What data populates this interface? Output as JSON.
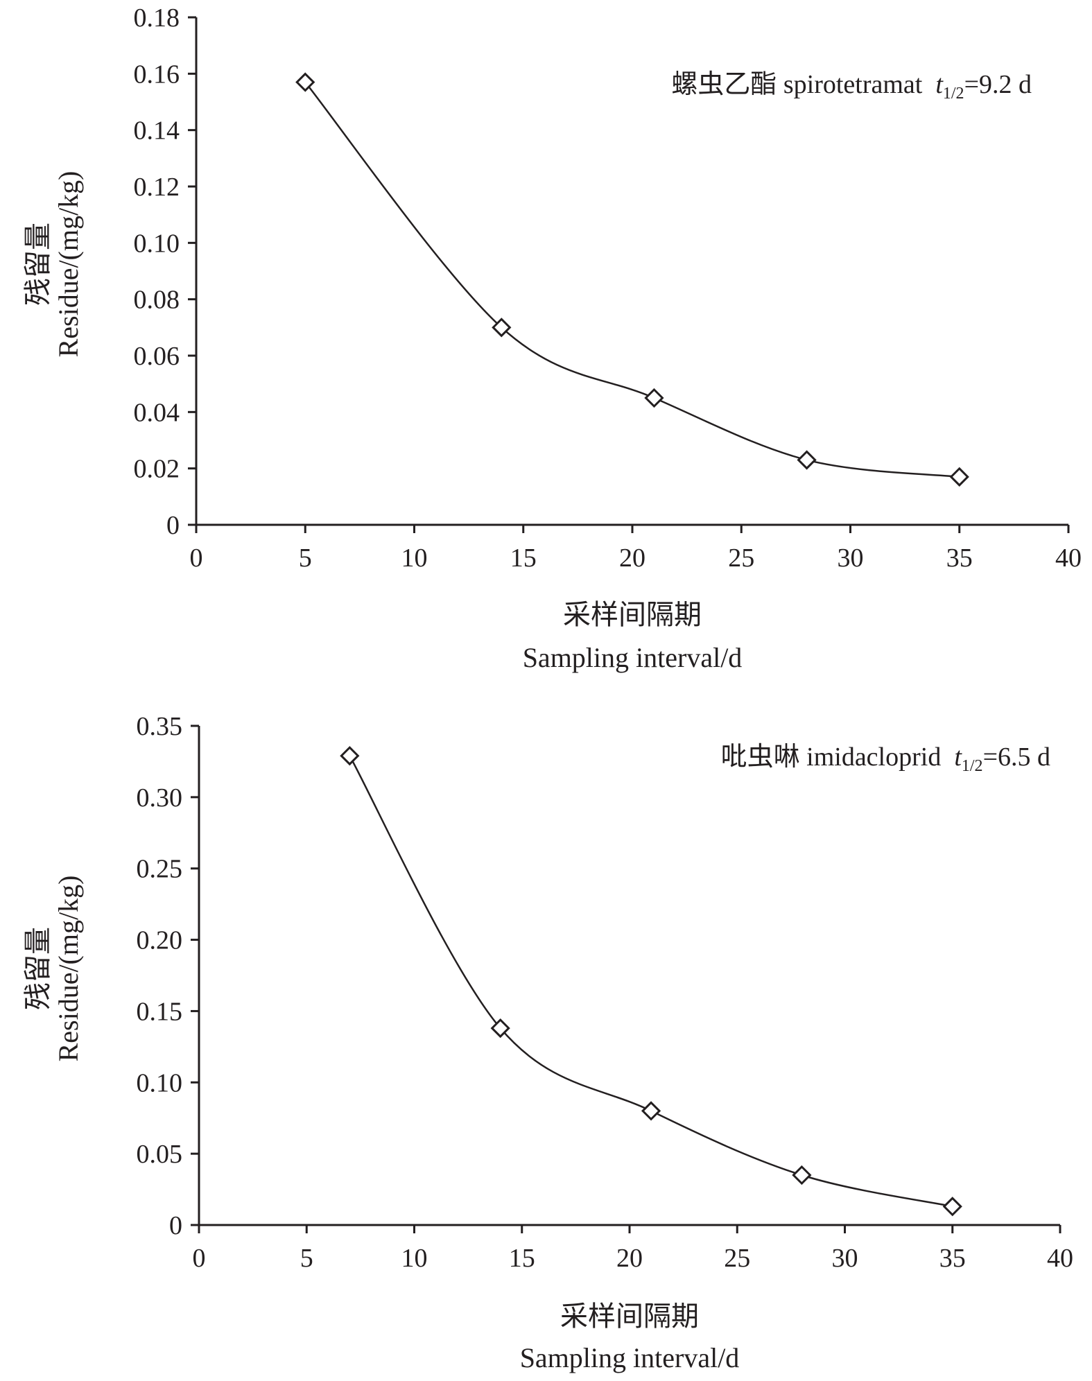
{
  "chart_data": [
    {
      "type": "line",
      "title": "",
      "annotation": {
        "name": "螺虫乙酯 spirotetramat",
        "half_life_symbol": "t",
        "half_life_subscript": "1/2",
        "half_life_value": "=9.2 d"
      },
      "xlabel_cn": "采样间隔期",
      "xlabel": "Sampling interval/d",
      "ylabel_cn": "残留量",
      "ylabel": "Residue/(mg/kg)",
      "xlim": [
        0,
        40
      ],
      "ylim": [
        0,
        0.18
      ],
      "x_ticks": [
        0,
        5,
        10,
        15,
        20,
        25,
        30,
        35,
        40
      ],
      "x_tick_labels": [
        "0",
        "5",
        "10",
        "15",
        "20",
        "25",
        "30",
        "35",
        "40"
      ],
      "y_ticks": [
        0,
        0.02,
        0.04,
        0.06,
        0.08,
        0.1,
        0.12,
        0.14,
        0.16,
        0.18
      ],
      "y_tick_labels": [
        "0",
        "0.02",
        "0.04",
        "0.06",
        "0.08",
        "0.10",
        "0.12",
        "0.14",
        "0.16",
        "0.18"
      ],
      "grid": false,
      "marker": "diamond",
      "series": [
        {
          "name": "spirotetramat",
          "x": [
            5,
            14,
            21,
            28,
            35
          ],
          "y": [
            0.157,
            0.07,
            0.045,
            0.023,
            0.017
          ]
        }
      ]
    },
    {
      "type": "line",
      "title": "",
      "annotation": {
        "name": "吡虫啉 imidacloprid",
        "half_life_symbol": "t",
        "half_life_subscript": "1/2",
        "half_life_value": "=6.5 d"
      },
      "xlabel_cn": "采样间隔期",
      "xlabel": "Sampling interval/d",
      "ylabel_cn": "残留量",
      "ylabel": "Residue/(mg/kg)",
      "xlim": [
        0,
        40
      ],
      "ylim": [
        0,
        0.35
      ],
      "x_ticks": [
        0,
        5,
        10,
        15,
        20,
        25,
        30,
        35,
        40
      ],
      "x_tick_labels": [
        "0",
        "5",
        "10",
        "15",
        "20",
        "25",
        "30",
        "35",
        "40"
      ],
      "y_ticks": [
        0,
        0.05,
        0.1,
        0.15,
        0.2,
        0.25,
        0.3,
        0.35
      ],
      "y_tick_labels": [
        "0",
        "0.05",
        "0.10",
        "0.15",
        "0.20",
        "0.25",
        "0.30",
        "0.35"
      ],
      "grid": false,
      "marker": "diamond",
      "series": [
        {
          "name": "imidacloprid",
          "x": [
            7,
            14,
            21,
            28,
            35
          ],
          "y": [
            0.329,
            0.138,
            0.08,
            0.035,
            0.013
          ]
        }
      ]
    }
  ]
}
